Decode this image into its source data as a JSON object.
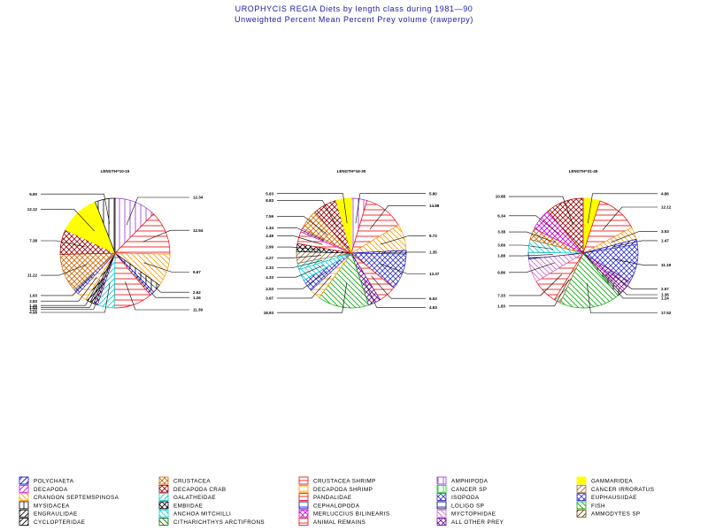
{
  "title": "UROPHYCIS REGIA Diets by length class during 1981—90",
  "subtitle": "Unweighted Percent Mean Percent Prey  volume (rawperpy)",
  "chart_data": [
    {
      "type": "pie",
      "title": "LENGTH=10-15",
      "slices": [
        {
          "category": "AMPHIPODA",
          "value": 12.34,
          "label": "12.34"
        },
        {
          "category": "CRUSTACEA SHRIMP",
          "value": 12.94,
          "label": "12.94"
        },
        {
          "category": "CRANGON SEPTEMSPINOSA",
          "value": 9.67,
          "label": "9.67"
        },
        {
          "category": "MYSIDACEA",
          "value": 2.62,
          "label": "2.62"
        },
        {
          "category": "POLYCHAETA",
          "value": 1.26,
          "label": "1.26"
        },
        {
          "category": "CRUSTACEA SHRIMP",
          "value": 11.39,
          "label": "11.39"
        },
        {
          "category": "GALATHEIDAE",
          "value": 4.98,
          "label": "4.98"
        },
        {
          "category": "ALL OTHER PREY",
          "value": 1.22,
          "label": "1.22"
        },
        {
          "category": "CYCLOPTERIDAE",
          "value": 1.04,
          "label": "1.04"
        },
        {
          "category": "ENGRAULIDAE",
          "value": 1.46,
          "label": "1.46"
        },
        {
          "category": "DECAPODA SHRIMP",
          "value": 2.83,
          "label": "2.83"
        },
        {
          "category": "EUPHAUSIIDAE",
          "value": 1.63,
          "label": "1.63"
        },
        {
          "category": "CRUSTACEA",
          "value": 11.22,
          "label": "11.22"
        },
        {
          "category": "DECAPODA CRAB",
          "value": 7.38,
          "label": "7.38"
        },
        {
          "category": "GAMMARIDEA",
          "value": 12.12,
          "label": "12.12"
        },
        {
          "category": "MYSIDACEA",
          "value": 5.9,
          "label": "5.90"
        }
      ]
    },
    {
      "type": "pie",
      "title": "LENGTH=16-30",
      "slices": [
        {
          "category": "AMPHIPODA",
          "value": 5.8,
          "label": "5.80"
        },
        {
          "category": "CRUSTACEA SHRIMP",
          "value": 14.88,
          "label": "14.88"
        },
        {
          "category": "CRANGON SEPTEMSPINOSA",
          "value": 9.73,
          "label": "9.73"
        },
        {
          "category": "POLYCHAETA",
          "value": 1.35,
          "label": "1.35"
        },
        {
          "category": "EUPHAUSIIDAE",
          "value": 13.37,
          "label": "13.37"
        },
        {
          "category": "CRUSTACEA SHRIMP",
          "value": 6.63,
          "label": "6.63"
        },
        {
          "category": "ALL OTHER PREY",
          "value": 4.63,
          "label": "4.63"
        },
        {
          "category": "FISH",
          "value": 18.93,
          "label": "18.93"
        },
        {
          "category": "DECAPODA SHRIMP",
          "value": 3.97,
          "label": "3.97"
        },
        {
          "category": "ISOPODA",
          "value": 4.53,
          "label": "4.53"
        },
        {
          "category": "ANCHOA MITCHILLI",
          "value": 4.33,
          "label": "4.33"
        },
        {
          "category": "GALATHEIDAE",
          "value": 2.33,
          "label": "2.33"
        },
        {
          "category": "CANCER IRRORATUS",
          "value": 4.27,
          "label": "4.27"
        },
        {
          "category": "EMBIIDAE",
          "value": 2.99,
          "label": "2.99"
        },
        {
          "category": "PANDALIDAE",
          "value": 4.48,
          "label": "4.48"
        },
        {
          "category": "DECAPODA",
          "value": 1.34,
          "label": "1.34"
        },
        {
          "category": "CRUSTACEA",
          "value": 7.59,
          "label": "7.59"
        },
        {
          "category": "DECAPODA CRAB",
          "value": 8.83,
          "label": "8.83"
        },
        {
          "category": "GAMMARIDEA",
          "value": 5.63,
          "label": "5.63"
        }
      ]
    },
    {
      "type": "pie",
      "title": "LENGTH=31-45",
      "slices": [
        {
          "category": "GAMMARIDEA",
          "value": 4.86,
          "label": "4.86"
        },
        {
          "category": "CRUSTACEA SHRIMP",
          "value": 12.12,
          "label": "12.12"
        },
        {
          "category": "CRANGON SEPTEMSPINOSA",
          "value": 3.53,
          "label": "3.53"
        },
        {
          "category": "POLYCHAETA",
          "value": 1.47,
          "label": "1.47"
        },
        {
          "category": "EUPHAUSIIDAE",
          "value": 11.18,
          "label": "11.18"
        },
        {
          "category": "ALL OTHER PREY",
          "value": 2.57,
          "label": "2.57"
        },
        {
          "category": "DECAPODA",
          "value": 1.36,
          "label": "1.36"
        },
        {
          "category": "MYSIDACEA",
          "value": 1.24,
          "label": "1.24"
        },
        {
          "category": "FISH",
          "value": 17.52,
          "label": "17.52"
        },
        {
          "category": "CANCER IRRORATUS",
          "value": 1.83,
          "label": "1.83"
        },
        {
          "category": "CRUSTACEA SHRIMP",
          "value": 7.33,
          "label": "7.33"
        },
        {
          "category": "MYCTOPHIDAE",
          "value": 6.86,
          "label": "6.86"
        },
        {
          "category": "LOLIGO SP",
          "value": 1.88,
          "label": "1.88"
        },
        {
          "category": "ANCHOA MITCHILLI",
          "value": 3.69,
          "label": "3.69"
        },
        {
          "category": "CRUSTACEA",
          "value": 3.38,
          "label": "3.38"
        },
        {
          "category": "MERLUCCIUS BILINEARIS",
          "value": 6.34,
          "label": "6.34"
        },
        {
          "category": "DECAPODA CRAB",
          "value": 10.88,
          "label": "10.88"
        }
      ]
    }
  ],
  "legend": [
    {
      "name": "POLYCHAETA",
      "pattern": "diag-up",
      "color": "#0000cc"
    },
    {
      "name": "DECAPODA",
      "pattern": "diag-up",
      "color": "#cc00cc"
    },
    {
      "name": "CRANGON SEPTEMSPINOSA",
      "pattern": "diag-down",
      "color": "#ff9900"
    },
    {
      "name": "MYSIDACEA",
      "pattern": "vert",
      "color": "#000000"
    },
    {
      "name": "ENGRAULIDAE",
      "pattern": "diag-up",
      "color": "#000000"
    },
    {
      "name": "CYCLOPTERIDAE",
      "pattern": "diag-up",
      "color": "#000000"
    },
    {
      "name": "CRUSTACEA",
      "pattern": "cross-diag",
      "color": "#cc6600"
    },
    {
      "name": "DECAPODA CRAB",
      "pattern": "cross-diag",
      "color": "#990000"
    },
    {
      "name": "GALATHEIDAE",
      "pattern": "diag-up",
      "color": "#00cccc"
    },
    {
      "name": "EMBIIDAE",
      "pattern": "cross-diag",
      "color": "#000000"
    },
    {
      "name": "ANCHOA MITCHILLI",
      "pattern": "diag-down",
      "color": "#00cccc"
    },
    {
      "name": "CITHARICHTHYS ARCTIFRONS",
      "pattern": "diag-down",
      "color": "#006600"
    },
    {
      "name": "CRUSTACEA SHRIMP",
      "pattern": "horiz",
      "color": "#ee0000"
    },
    {
      "name": "DECAPODA SHRIMP",
      "pattern": "horiz",
      "color": "#ff9900"
    },
    {
      "name": "PANDALIDAE",
      "pattern": "horiz",
      "color": "#ee0000"
    },
    {
      "name": "CEPHALOPODA",
      "pattern": "horiz",
      "color": "#0000cc"
    },
    {
      "name": "MERLUCCIUS BILINEARIS",
      "pattern": "cross-diag",
      "color": "#cc00cc"
    },
    {
      "name": "ANIMAL REMAINS",
      "pattern": "horiz",
      "color": "#ee0000"
    },
    {
      "name": "AMPHIPODA",
      "pattern": "vert",
      "color": "#9933cc"
    },
    {
      "name": "CANCER SP",
      "pattern": "vert",
      "color": "#00cc00"
    },
    {
      "name": "ISOPODA",
      "pattern": "cross-diag",
      "color": "#3333cc"
    },
    {
      "name": "LOLIGO SP",
      "pattern": "horiz",
      "color": "#000066"
    },
    {
      "name": "MYCTOPHIDAE",
      "pattern": "diag-down",
      "color": "#cc66cc"
    },
    {
      "name": "ALL OTHER PREY",
      "pattern": "cross-diag",
      "color": "#660099"
    },
    {
      "name": "GAMMARIDEA",
      "pattern": "solid",
      "color": "#ffff00"
    },
    {
      "name": "CANCER IRRORATUS",
      "pattern": "diag-up",
      "color": "#996633"
    },
    {
      "name": "EUPHAUSIIDAE",
      "pattern": "cross-diag",
      "color": "#3333cc"
    },
    {
      "name": "FISH",
      "pattern": "diag-down",
      "color": "#00aa00"
    },
    {
      "name": "AMMODYTES SP",
      "pattern": "diag-up",
      "color": "#663300"
    }
  ]
}
